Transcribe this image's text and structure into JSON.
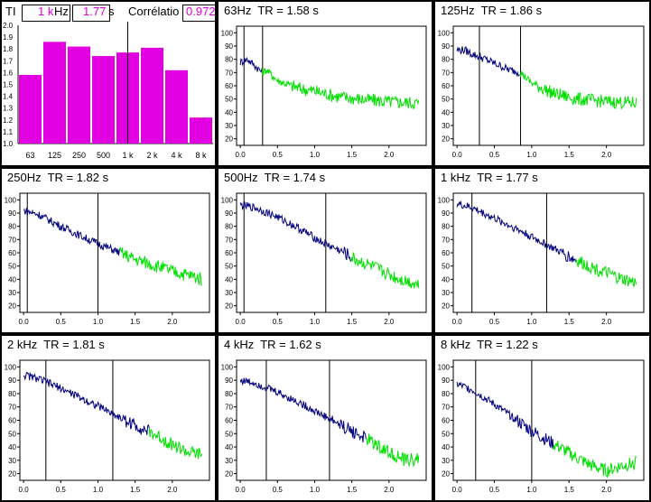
{
  "header": {
    "tr_label": "TI",
    "band_value": "1 k",
    "band_unit": "Hz",
    "tr_value": "1.77",
    "tr_unit": "s",
    "corr_label": "Corrélatio",
    "corr_value": "0.972"
  },
  "colors": {
    "bar": "#e000e0",
    "early": "#00007f",
    "late": "#00e000",
    "grid_line": "#000000"
  },
  "chart_data": [
    {
      "type": "bar",
      "panel": "summary",
      "categories": [
        "63",
        "125",
        "250",
        "500",
        "1 k",
        "2 k",
        "4 k",
        "8 k"
      ],
      "values": [
        1.58,
        1.86,
        1.82,
        1.74,
        1.77,
        1.81,
        1.62,
        1.22
      ],
      "yticks": [
        "1.0",
        "1.1",
        "1.2",
        "1.3",
        "1.4",
        "1.5",
        "1.6",
        "1.7",
        "1.8",
        "1.9",
        "2.0"
      ],
      "ylim": [
        1.0,
        2.0
      ],
      "marker_category": "1 k"
    },
    {
      "type": "line",
      "title": "63Hz  TR = 1.58 s",
      "xlim": [
        -0.05,
        2.5
      ],
      "ylim": [
        15,
        105
      ],
      "xticks": [
        "0.0",
        "0.5",
        "1.0",
        "1.5",
        "2.0"
      ],
      "yticks": [
        "20",
        "30",
        "40",
        "50",
        "60",
        "70",
        "80",
        "90",
        "100"
      ],
      "markers": [
        0.05,
        0.3
      ],
      "fit_end": 0.3,
      "series": [
        {
          "x": [
            0,
            0.1,
            0.2,
            0.3,
            0.35,
            0.5,
            0.8,
            1.0,
            1.3,
            1.6,
            2.0,
            2.4
          ],
          "y": [
            78,
            80,
            75,
            70,
            72,
            64,
            58,
            56,
            52,
            50,
            48,
            47
          ]
        }
      ]
    },
    {
      "type": "line",
      "title": "125Hz  TR = 1.86 s",
      "xlim": [
        -0.05,
        2.5
      ],
      "ylim": [
        15,
        105
      ],
      "xticks": [
        "0.0",
        "0.5",
        "1.0",
        "1.5",
        "2.0"
      ],
      "yticks": [
        "20",
        "30",
        "40",
        "50",
        "60",
        "70",
        "80",
        "90",
        "100"
      ],
      "markers": [
        0.3,
        0.85
      ],
      "fit_end": 0.85,
      "series": [
        {
          "x": [
            0,
            0.1,
            0.2,
            0.3,
            0.5,
            0.7,
            0.85,
            1.0,
            1.3,
            1.6,
            2.0,
            2.4
          ],
          "y": [
            87,
            87,
            84,
            82,
            77,
            72,
            70,
            62,
            54,
            50,
            48,
            47
          ]
        }
      ]
    },
    {
      "type": "line",
      "title": "250Hz  TR = 1.82 s",
      "xlim": [
        -0.05,
        2.5
      ],
      "ylim": [
        15,
        105
      ],
      "xticks": [
        "0.0",
        "0.5",
        "1.0",
        "1.5",
        "2.0"
      ],
      "yticks": [
        "20",
        "30",
        "40",
        "50",
        "60",
        "70",
        "80",
        "90",
        "100"
      ],
      "markers": [
        0.05,
        1.0
      ],
      "fit_end": 1.3,
      "series": [
        {
          "x": [
            0,
            0.2,
            0.5,
            0.8,
            1.0,
            1.3,
            1.5,
            1.8,
            2.0,
            2.3,
            2.4
          ],
          "y": [
            92,
            89,
            80,
            72,
            67,
            60,
            55,
            50,
            46,
            42,
            40
          ]
        }
      ]
    },
    {
      "type": "line",
      "title": "500Hz  TR = 1.74 s",
      "xlim": [
        -0.05,
        2.5
      ],
      "ylim": [
        15,
        105
      ],
      "xticks": [
        "0.0",
        "0.5",
        "1.0",
        "1.5",
        "2.0"
      ],
      "yticks": [
        "20",
        "30",
        "40",
        "50",
        "60",
        "70",
        "80",
        "90",
        "100"
      ],
      "markers": [
        0.05,
        1.15
      ],
      "fit_end": 1.5,
      "series": [
        {
          "x": [
            0,
            0.2,
            0.5,
            0.8,
            1.1,
            1.4,
            1.5,
            1.8,
            2.1,
            2.4
          ],
          "y": [
            96,
            94,
            87,
            78,
            68,
            60,
            56,
            49,
            41,
            36
          ]
        }
      ]
    },
    {
      "type": "line",
      "title": "1 kHz  TR = 1.77 s",
      "xlim": [
        -0.05,
        2.5
      ],
      "ylim": [
        15,
        105
      ],
      "xticks": [
        "0.0",
        "0.5",
        "1.0",
        "1.5",
        "2.0"
      ],
      "yticks": [
        "20",
        "30",
        "40",
        "50",
        "60",
        "70",
        "80",
        "90",
        "100"
      ],
      "markers": [
        0.2,
        1.2
      ],
      "fit_end": 1.6,
      "series": [
        {
          "x": [
            0,
            0.2,
            0.5,
            0.8,
            1.1,
            1.4,
            1.6,
            1.9,
            2.2,
            2.4
          ],
          "y": [
            97,
            94,
            86,
            78,
            69,
            60,
            54,
            47,
            40,
            37
          ]
        }
      ]
    },
    {
      "type": "line",
      "title": "2 kHz  TR = 1.81 s",
      "xlim": [
        -0.05,
        2.5
      ],
      "ylim": [
        15,
        105
      ],
      "xticks": [
        "0.0",
        "0.5",
        "1.0",
        "1.5",
        "2.0"
      ],
      "yticks": [
        "20",
        "30",
        "40",
        "50",
        "60",
        "70",
        "80",
        "90",
        "100"
      ],
      "markers": [
        0.3,
        1.2
      ],
      "fit_end": 1.7,
      "series": [
        {
          "x": [
            0,
            0.2,
            0.5,
            0.8,
            1.1,
            1.4,
            1.7,
            2.0,
            2.2,
            2.4
          ],
          "y": [
            94,
            91,
            84,
            76,
            68,
            59,
            51,
            42,
            36,
            34
          ]
        }
      ]
    },
    {
      "type": "line",
      "title": "4 kHz  TR = 1.62 s",
      "xlim": [
        -0.05,
        2.5
      ],
      "ylim": [
        15,
        105
      ],
      "xticks": [
        "0.0",
        "0.5",
        "1.0",
        "1.5",
        "2.0"
      ],
      "yticks": [
        "20",
        "30",
        "40",
        "50",
        "60",
        "70",
        "80",
        "90",
        "100"
      ],
      "markers": [
        0.35,
        1.2
      ],
      "fit_end": 1.7,
      "series": [
        {
          "x": [
            0,
            0.2,
            0.5,
            0.8,
            1.1,
            1.4,
            1.7,
            2.0,
            2.2,
            2.4
          ],
          "y": [
            90,
            88,
            81,
            73,
            64,
            55,
            46,
            36,
            30,
            31
          ]
        }
      ]
    },
    {
      "type": "line",
      "title": "8 kHz  TR = 1.22 s",
      "xlim": [
        -0.05,
        2.5
      ],
      "ylim": [
        15,
        105
      ],
      "xticks": [
        "0.0",
        "0.5",
        "1.0",
        "1.5",
        "2.0"
      ],
      "yticks": [
        "20",
        "30",
        "40",
        "50",
        "60",
        "70",
        "80",
        "90",
        "100"
      ],
      "markers": [
        0.25,
        1.0
      ],
      "fit_end": 1.3,
      "series": [
        {
          "x": [
            0,
            0.2,
            0.5,
            0.8,
            1.0,
            1.3,
            1.6,
            1.8,
            2.0,
            2.2,
            2.4
          ],
          "y": [
            87,
            83,
            72,
            60,
            52,
            42,
            32,
            26,
            22,
            26,
            28
          ]
        }
      ]
    }
  ]
}
